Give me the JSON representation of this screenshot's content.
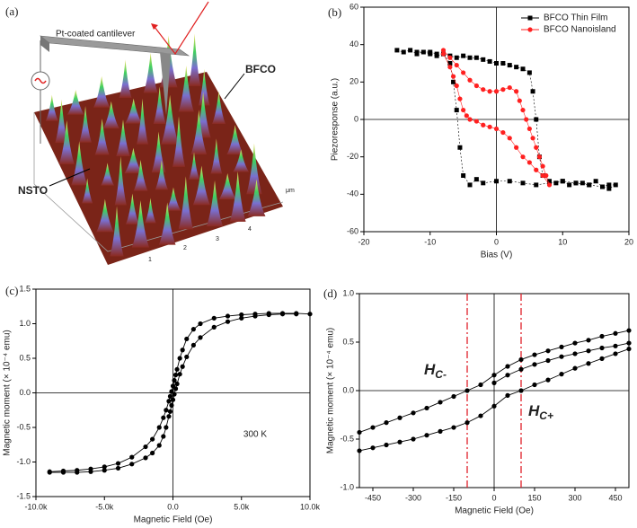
{
  "image_panel": {
    "label": "(a)",
    "cantilever": "Pt-coated cantilever",
    "film": "BFCO",
    "substrate": "NSTO",
    "unit": "μm",
    "axis_numbers": [
      "1",
      "2",
      "3",
      "4"
    ]
  },
  "chart_data": [
    {
      "type": "scatter",
      "label": "(b)",
      "xlabel": "Bias (V)",
      "ylabel": "Piezoresponse (a.u.)",
      "xlim": [
        -20,
        20
      ],
      "ylim": [
        -60,
        60
      ],
      "xticks": [
        -20,
        -10,
        0,
        10,
        20
      ],
      "yticks": [
        -60,
        -40,
        -20,
        0,
        20,
        40,
        60
      ],
      "zero_lines": true,
      "legend": "top-right",
      "series": [
        {
          "name": "BFCO Thin Film",
          "color": "#000000",
          "marker": "square",
          "x": [
            -15,
            -14,
            -13,
            -12,
            -11,
            -10,
            -9,
            -8,
            -7,
            -6,
            -5,
            -4,
            -3,
            -2,
            -1,
            0,
            1,
            2,
            3,
            4,
            5,
            5.5,
            6,
            6.5,
            7,
            8,
            9,
            10,
            11,
            12,
            13,
            14,
            15,
            16,
            17,
            18,
            17,
            16,
            14,
            12,
            10,
            8,
            6,
            4,
            2,
            0,
            -2,
            -3,
            -4,
            -5,
            -5.5,
            -6,
            -6.5,
            -7,
            -8,
            -9,
            -10,
            -12
          ],
          "values": [
            37,
            36,
            37,
            35,
            36,
            35,
            34,
            35,
            34,
            33,
            34,
            33,
            33,
            32,
            31,
            30,
            30,
            29,
            28,
            27,
            25,
            15,
            0,
            -20,
            -30,
            -33,
            -34,
            -33,
            -35,
            -34,
            -34,
            -35,
            -33,
            -36,
            -35,
            -35,
            -37,
            -36,
            -35,
            -34,
            -33,
            -34,
            -35,
            -34,
            -33,
            -33,
            -34,
            -32,
            -35,
            -30,
            -15,
            5,
            20,
            30,
            35,
            35,
            36,
            36
          ]
        },
        {
          "name": "BFCO Nanoisland",
          "color": "#ff2020",
          "marker": "circle",
          "x": [
            -8,
            -7,
            -6,
            -5,
            -4,
            -3,
            -2,
            -1,
            0,
            1,
            2,
            3,
            3.5,
            4,
            4.5,
            5,
            5.5,
            6,
            6.5,
            7,
            7.5,
            8,
            7,
            6,
            5,
            4,
            3,
            2,
            1,
            0,
            -1,
            -2,
            -3,
            -4,
            -4.5,
            -5,
            -5.5,
            -6,
            -6.5,
            -7,
            -8
          ],
          "values": [
            37,
            33,
            29,
            25,
            21,
            18,
            16,
            15,
            15,
            16,
            17,
            15,
            10,
            5,
            0,
            -5,
            -10,
            -15,
            -20,
            -25,
            -30,
            -35,
            -30,
            -27,
            -23,
            -20,
            -15,
            -10,
            -7,
            -5,
            -4,
            -3,
            -1,
            0,
            2,
            5,
            11,
            18,
            23,
            28,
            35
          ]
        }
      ]
    },
    {
      "type": "line",
      "label": "(c)",
      "xlabel": "Magnetic Field (Oe)",
      "ylabel": "Magnetic moment (× 10⁻⁴ emu)",
      "annotation": "300 K",
      "xlim": [
        -10000,
        10000
      ],
      "ylim": [
        -1.5,
        1.5
      ],
      "xticks": [
        {
          "value": -10000,
          "label": "-10.0k"
        },
        {
          "value": -5000,
          "label": "-5.0k"
        },
        {
          "value": 0,
          "label": "0.0"
        },
        {
          "value": 5000,
          "label": "5.0k"
        },
        {
          "value": 10000,
          "label": "10.0k"
        }
      ],
      "yticks": [
        {
          "value": -1.5,
          "label": "-1.5"
        },
        {
          "value": -1,
          "label": "-1.0"
        },
        {
          "value": -0.5,
          "label": "-0.5"
        },
        {
          "value": 0,
          "label": "0.0"
        },
        {
          "value": 0.5,
          "label": "0.5"
        },
        {
          "value": 1,
          "label": "1.0"
        },
        {
          "value": 1.5,
          "label": "1.5"
        }
      ],
      "zero_lines": true,
      "series": [
        {
          "color": "#000000",
          "marker": "circle",
          "x": [
            -9000,
            -8000,
            -7000,
            -6000,
            -5000,
            -4000,
            -3000,
            -2000,
            -1500,
            -1000,
            -700,
            -500,
            -300,
            -200,
            -100,
            0,
            100,
            200,
            300,
            500,
            700,
            1000,
            1500,
            2000,
            3000,
            4000,
            5000,
            6000,
            7000,
            8000,
            9000,
            10000
          ],
          "values": [
            -1.14,
            -1.13,
            -1.12,
            -1.1,
            -1.07,
            -1.02,
            -0.93,
            -0.78,
            -0.67,
            -0.5,
            -0.36,
            -0.25,
            -0.12,
            -0.05,
            0.02,
            0.1,
            0.18,
            0.26,
            0.34,
            0.5,
            0.62,
            0.78,
            0.92,
            1.0,
            1.08,
            1.11,
            1.13,
            1.14,
            1.15,
            1.15,
            1.15,
            1.14
          ]
        },
        {
          "color": "#000000",
          "marker": "circle",
          "x": [
            -9000,
            -8000,
            -7000,
            -6000,
            -5000,
            -4000,
            -3000,
            -2000,
            -1500,
            -1000,
            -700,
            -500,
            -300,
            -200,
            -100,
            0,
            100,
            200,
            300,
            500,
            700,
            1000,
            1500,
            2000,
            3000,
            4000,
            5000,
            6000,
            7000,
            8000,
            9000
          ],
          "values": [
            -1.15,
            -1.15,
            -1.15,
            -1.14,
            -1.12,
            -1.09,
            -1.03,
            -0.94,
            -0.87,
            -0.76,
            -0.63,
            -0.5,
            -0.34,
            -0.27,
            -0.18,
            -0.1,
            -0.02,
            0.06,
            0.13,
            0.27,
            0.38,
            0.52,
            0.69,
            0.8,
            0.95,
            1.03,
            1.08,
            1.11,
            1.13,
            1.14,
            1.14
          ]
        }
      ]
    },
    {
      "type": "line",
      "label": "(d)",
      "xlabel": "Magnetic Field (Oe)",
      "ylabel": "Magnetic moment (× 10⁻⁴ emu)",
      "xlim": [
        -500,
        500
      ],
      "ylim": [
        -1,
        1
      ],
      "xticks": [
        -450,
        -300,
        -150,
        0,
        150,
        300,
        450
      ],
      "yticks": [
        {
          "value": -1,
          "label": "-1.0"
        },
        {
          "value": -0.5,
          "label": "-0.5"
        },
        {
          "value": 0,
          "label": "0.0"
        },
        {
          "value": 0.5,
          "label": "0.5"
        },
        {
          "value": 1,
          "label": "1.0"
        }
      ],
      "zero_lines": true,
      "vlines": [
        {
          "value": -100,
          "label": "H",
          "sub": "C-",
          "color": "#e0202a"
        },
        {
          "value": 100,
          "label": "H",
          "sub": "C+",
          "color": "#e0202a"
        }
      ],
      "series": [
        {
          "color": "#000000",
          "marker": "circle",
          "x": [
            -500,
            -450,
            -400,
            -350,
            -300,
            -250,
            -200,
            -150,
            -100,
            -50,
            0,
            50,
            100,
            150,
            200,
            250,
            300,
            350,
            400,
            450,
            500
          ],
          "values": [
            -0.43,
            -0.38,
            -0.33,
            -0.28,
            -0.23,
            -0.18,
            -0.12,
            -0.06,
            0.0,
            0.06,
            0.16,
            0.25,
            0.32,
            0.37,
            0.41,
            0.45,
            0.49,
            0.52,
            0.56,
            0.59,
            0.62
          ]
        },
        {
          "color": "#000000",
          "marker": "circle",
          "x": [
            -500,
            -450,
            -400,
            -350,
            -300,
            -250,
            -200,
            -150,
            -100,
            -50,
            0,
            50,
            100,
            150,
            200,
            250,
            300,
            350,
            400,
            450,
            500
          ],
          "values": [
            -0.62,
            -0.59,
            -0.56,
            -0.53,
            -0.5,
            -0.46,
            -0.42,
            -0.38,
            -0.33,
            -0.26,
            -0.16,
            -0.05,
            0.0,
            0.06,
            0.11,
            0.17,
            0.23,
            0.28,
            0.33,
            0.38,
            0.43
          ]
        },
        {
          "color": "#000000",
          "marker": "circle",
          "x": [
            0,
            50,
            100,
            150,
            200,
            250,
            300,
            350,
            400,
            450,
            500
          ],
          "values": [
            0.08,
            0.16,
            0.22,
            0.27,
            0.31,
            0.35,
            0.38,
            0.41,
            0.44,
            0.46,
            0.49
          ]
        }
      ]
    }
  ]
}
